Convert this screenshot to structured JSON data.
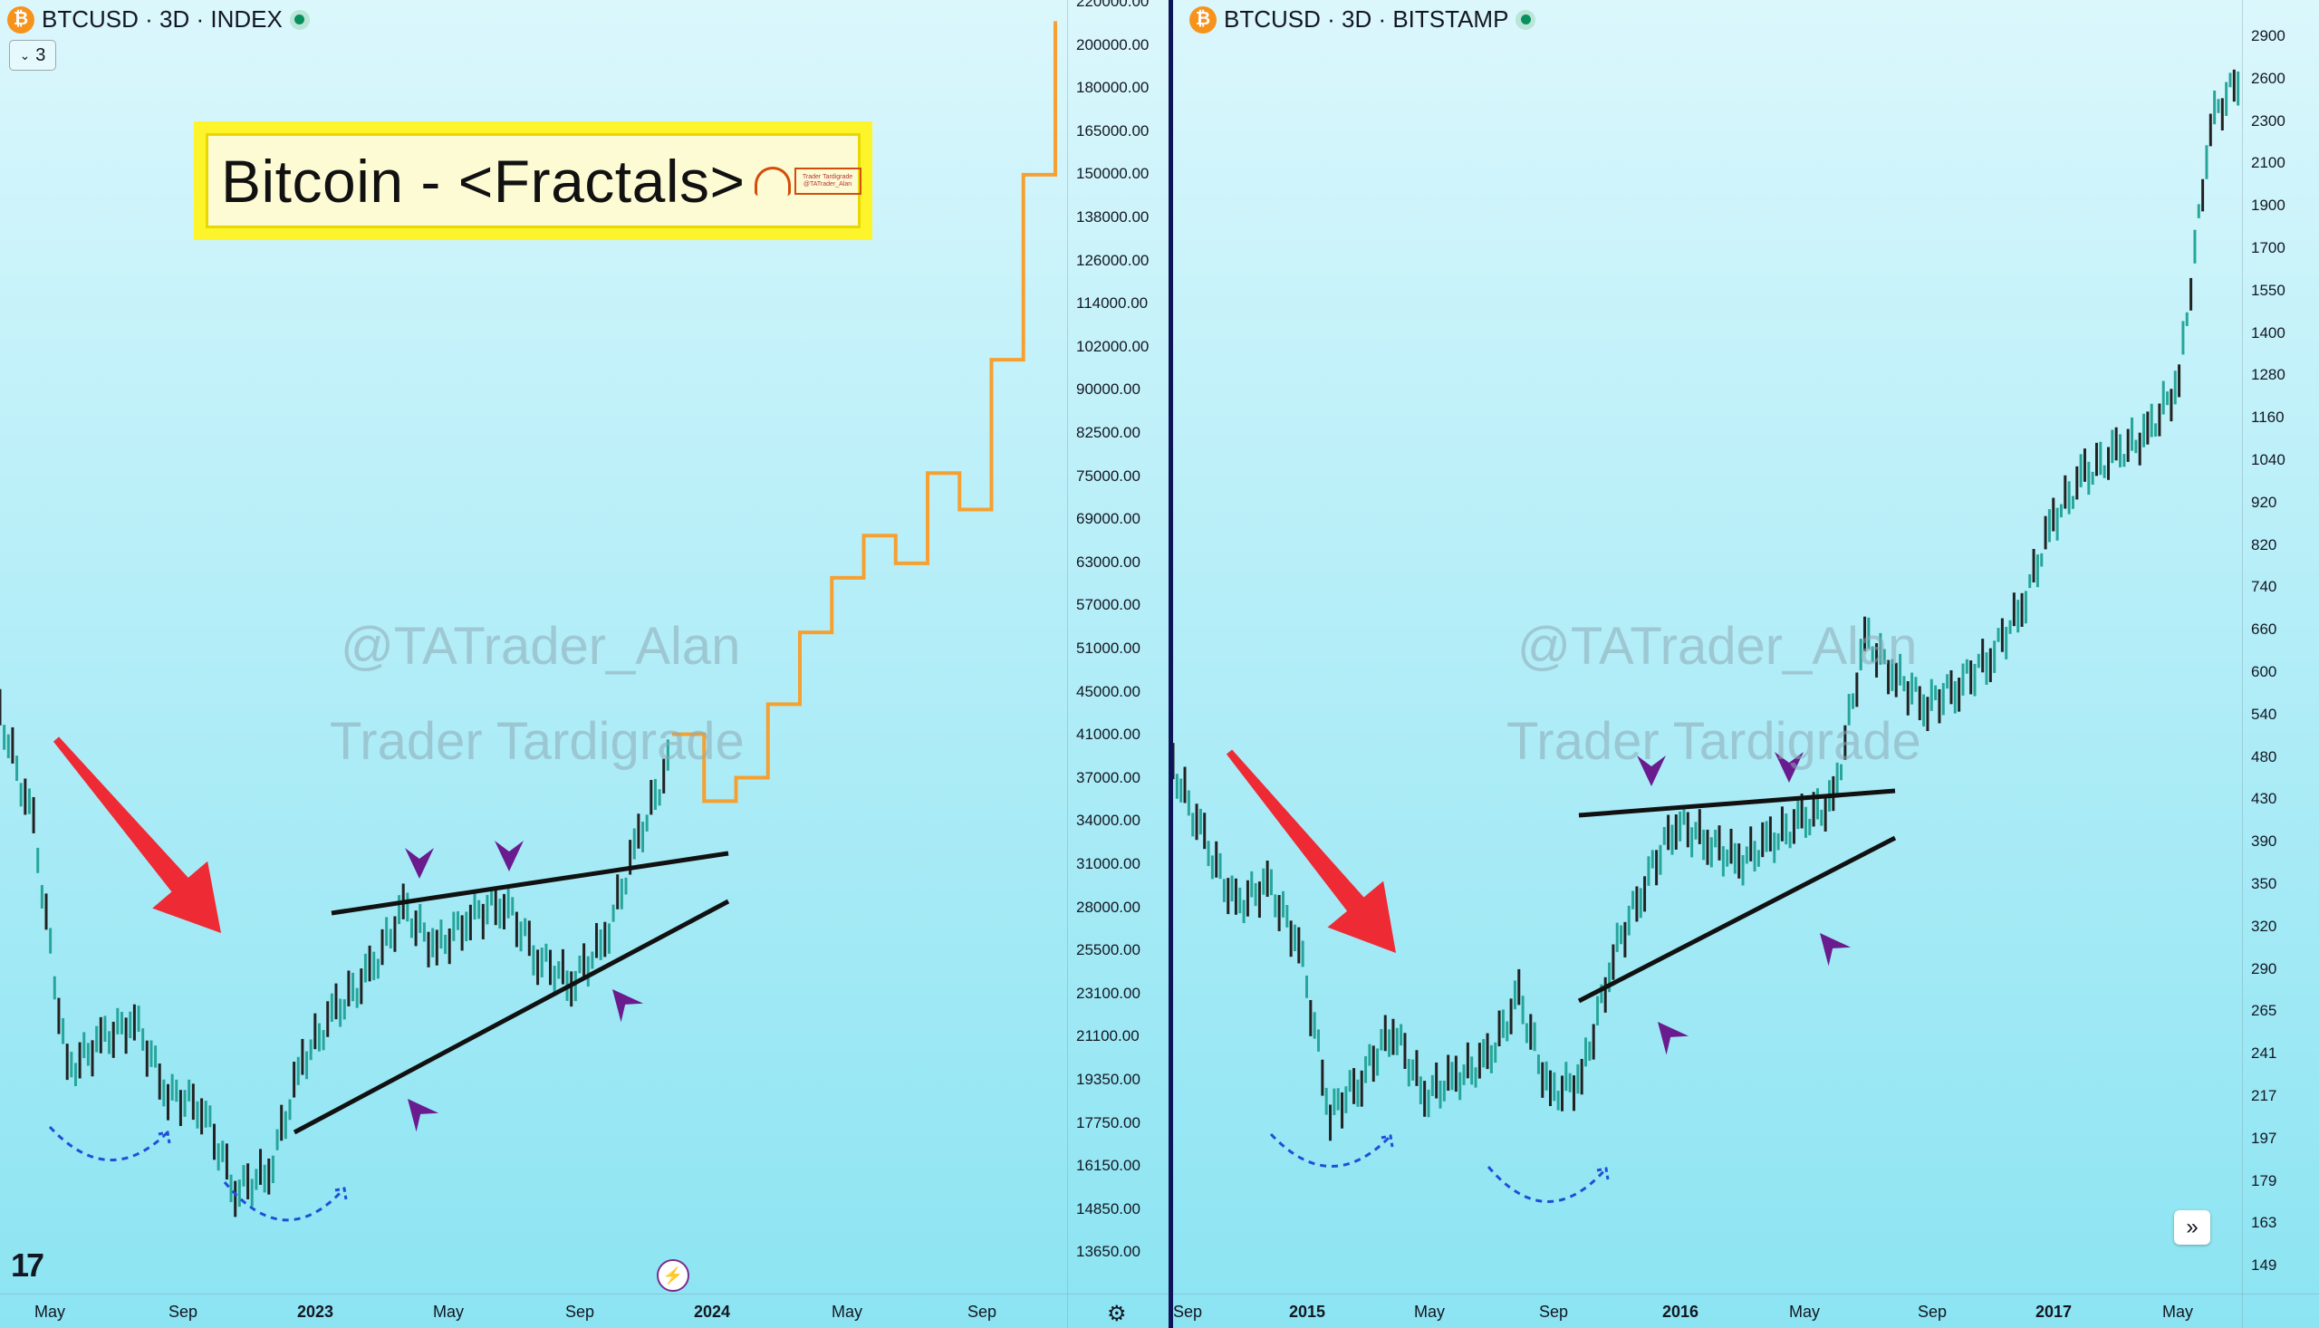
{
  "left_chart": {
    "symbol": "BTCUSD · 3D · INDEX",
    "icon": "bitcoin-icon",
    "collapse_count": "3",
    "title": "Bitcoin - <Fractals>",
    "logo_text": "Trader Tardigrade @TATrader_Alan",
    "watermark_handle": "@TATrader_Alan",
    "watermark_name": "Trader Tardigrade",
    "price_axis": [
      "220000.00",
      "200000.00",
      "180000.00",
      "165000.00",
      "150000.00",
      "138000.00",
      "126000.00",
      "114000.00",
      "102000.00",
      "90000.00",
      "82500.00",
      "75000.00",
      "69000.00",
      "63000.00",
      "57000.00",
      "51000.00",
      "45000.00",
      "41000.00",
      "37000.00",
      "34000.00",
      "31000.00",
      "28000.00",
      "25500.00",
      "23100.00",
      "21100.00",
      "19350.00",
      "17750.00",
      "16150.00",
      "14850.00",
      "13650.00"
    ],
    "time_axis": [
      {
        "label": "May",
        "bold": false
      },
      {
        "label": "Sep",
        "bold": false
      },
      {
        "label": "2023",
        "bold": true
      },
      {
        "label": "May",
        "bold": false
      },
      {
        "label": "Sep",
        "bold": false
      },
      {
        "label": "2024",
        "bold": true
      },
      {
        "label": "May",
        "bold": false
      },
      {
        "label": "Sep",
        "bold": false
      }
    ]
  },
  "right_chart": {
    "symbol": "BTCUSD · 3D · BITSTAMP",
    "icon": "bitcoin-icon",
    "watermark_handle": "@TATrader_Alan",
    "watermark_name": "Trader Tardigrade",
    "price_axis": [
      "2900",
      "2600",
      "2300",
      "2100",
      "1900",
      "1700",
      "1550",
      "1400",
      "1280",
      "1160",
      "1040",
      "920",
      "820",
      "740",
      "660",
      "600",
      "540",
      "480",
      "430",
      "390",
      "350",
      "320",
      "290",
      "265",
      "241",
      "217",
      "197",
      "179",
      "163",
      "149"
    ],
    "time_axis": [
      {
        "label": "Sep",
        "bold": false
      },
      {
        "label": "2015",
        "bold": true
      },
      {
        "label": "May",
        "bold": false
      },
      {
        "label": "Sep",
        "bold": false
      },
      {
        "label": "2016",
        "bold": true
      },
      {
        "label": "May",
        "bold": false
      },
      {
        "label": "Sep",
        "bold": false
      },
      {
        "label": "2017",
        "bold": true
      },
      {
        "label": "May",
        "bold": false
      }
    ]
  },
  "colors": {
    "candle_up": "#26a69a",
    "candle_down": "#222222",
    "projection": "#f5a031",
    "arrow_red": "#ee2a35",
    "marker_purple": "#6a1b8e",
    "trendline": "#111111",
    "dashed_curve": "#1e4fd8",
    "divider": "#0d1457"
  },
  "chart_data": [
    {
      "type": "line",
      "title": "BTCUSD · 3D · INDEX",
      "scale": "log",
      "ylim": [
        13650,
        220000
      ],
      "series": [
        {
          "name": "",
          "x": [
            "2022-04",
            "2022-05",
            "2022-06",
            "2022-07",
            "2022-08",
            "2022-09",
            "2022-10",
            "2022-11",
            "2022-12",
            "2023-01",
            "2023-02",
            "2023-03",
            "2023-04",
            "2023-05",
            "2023-06",
            "2023-07",
            "2023-08",
            "2023-09",
            "2023-10",
            "2023-11",
            "2023-12"
          ],
          "values": [
            46000,
            36000,
            21000,
            22500,
            23500,
            20000,
            19500,
            16200,
            16800,
            21500,
            24000,
            26000,
            30000,
            27500,
            29500,
            30500,
            27000,
            25500,
            28000,
            35000,
            42000
          ]
        },
        {
          "name": "",
          "x": [
            "2024-01",
            "2024-02",
            "2024-03",
            "2024-04",
            "2024-05",
            "2024-06",
            "2024-07",
            "2024-08",
            "2024-09",
            "2024-10",
            "2024-11",
            "2024-12",
            "2025-01"
          ],
          "values": [
            44000,
            38000,
            40000,
            47000,
            55000,
            62000,
            68000,
            64000,
            78000,
            72000,
            100000,
            150000,
            210000
          ]
        }
      ]
    },
    {
      "type": "line",
      "title": "BTCUSD · 3D · BITSTAMP",
      "scale": "log",
      "ylim": [
        149,
        2900
      ],
      "series": [
        {
          "name": "",
          "x": [
            "2014-08",
            "2014-09",
            "2014-10",
            "2014-11",
            "2014-12",
            "2015-01",
            "2015-02",
            "2015-03",
            "2015-04",
            "2015-05",
            "2015-06",
            "2015-07",
            "2015-08",
            "2015-09",
            "2015-10",
            "2015-11",
            "2015-12",
            "2016-01",
            "2016-02",
            "2016-03",
            "2016-04",
            "2016-05",
            "2016-06",
            "2016-07",
            "2016-08",
            "2016-09",
            "2016-10",
            "2016-11",
            "2016-12",
            "2017-01",
            "2017-02",
            "2017-03",
            "2017-04",
            "2017-05",
            "2017-06"
          ],
          "values": [
            500,
            420,
            360,
            380,
            330,
            220,
            240,
            270,
            230,
            240,
            250,
            290,
            230,
            240,
            320,
            380,
            440,
            420,
            400,
            420,
            440,
            460,
            680,
            620,
            580,
            610,
            650,
            730,
            900,
            1000,
            1050,
            1100,
            1250,
            2300,
            2600
          ]
        }
      ]
    }
  ]
}
